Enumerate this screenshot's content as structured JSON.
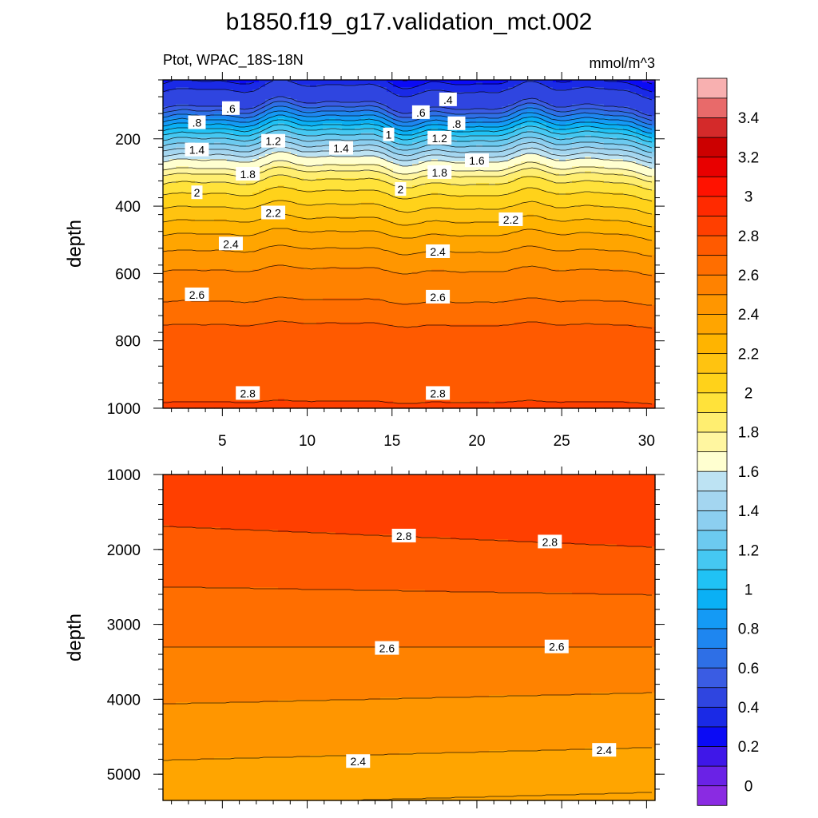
{
  "title": "b1850.f19_g17.validation_mct.002",
  "subtitle_left": "Ptot, WPAC_18S-18N",
  "subtitle_right": "mmol/m^3",
  "chart_data": [
    {
      "type": "heatmap",
      "panel": "upper",
      "ylabel": "depth",
      "xlim": [
        1.5,
        30.5
      ],
      "ylim": [
        1000,
        0
      ],
      "xticks": [
        "5",
        "10",
        "15",
        "20",
        "25",
        "30"
      ],
      "yticks": [
        "200",
        "400",
        "600",
        "800",
        "1000"
      ],
      "grid": false,
      "contour_labels": [
        {
          "text": ".6",
          "x": 5.5,
          "y": 110
        },
        {
          "text": ".4",
          "x": 18.3,
          "y": 84
        },
        {
          "text": ".6",
          "x": 16.7,
          "y": 122
        },
        {
          "text": ".8",
          "x": 3.5,
          "y": 152
        },
        {
          "text": ".8",
          "x": 18.8,
          "y": 155
        },
        {
          "text": "1",
          "x": 14.8,
          "y": 188
        },
        {
          "text": "1.2",
          "x": 8.0,
          "y": 207
        },
        {
          "text": "1.2",
          "x": 17.8,
          "y": 198
        },
        {
          "text": "1.4",
          "x": 3.5,
          "y": 233
        },
        {
          "text": "1.4",
          "x": 12.0,
          "y": 228
        },
        {
          "text": "1.6",
          "x": 20.0,
          "y": 265
        },
        {
          "text": "1.8",
          "x": 6.5,
          "y": 305
        },
        {
          "text": "1.8",
          "x": 17.8,
          "y": 300
        },
        {
          "text": "2",
          "x": 3.5,
          "y": 360
        },
        {
          "text": "2",
          "x": 15.5,
          "y": 350
        },
        {
          "text": "2.2",
          "x": 8.0,
          "y": 420
        },
        {
          "text": "2.2",
          "x": 22.0,
          "y": 440
        },
        {
          "text": "2.4",
          "x": 5.5,
          "y": 512
        },
        {
          "text": "2.4",
          "x": 17.7,
          "y": 535
        },
        {
          "text": "2.6",
          "x": 3.5,
          "y": 663
        },
        {
          "text": "2.6",
          "x": 17.7,
          "y": 670
        },
        {
          "text": "2.8",
          "x": 6.5,
          "y": 956
        },
        {
          "text": "2.8",
          "x": 17.7,
          "y": 956
        }
      ]
    },
    {
      "type": "heatmap",
      "panel": "lower",
      "ylabel": "depth",
      "xlim": [
        1.5,
        30.5
      ],
      "ylim": [
        1000,
        5350
      ],
      "yticks": [
        "1000",
        "2000",
        "3000",
        "4000",
        "5000"
      ],
      "grid": false,
      "contour_labels": [
        {
          "text": "2.8",
          "x": 15.7,
          "y": 1820
        },
        {
          "text": "2.8",
          "x": 24.3,
          "y": 1900
        },
        {
          "text": "2.6",
          "x": 14.7,
          "y": 3320
        },
        {
          "text": "2.6",
          "x": 24.7,
          "y": 3300
        },
        {
          "text": "2.4",
          "x": 13.0,
          "y": 4830
        },
        {
          "text": "2.4",
          "x": 27.5,
          "y": 4680
        }
      ]
    }
  ],
  "colorbar": {
    "levels": [
      -0.1,
      0,
      0.1,
      0.2,
      0.3,
      0.4,
      0.5,
      0.6,
      0.7,
      0.8,
      0.9,
      1.0,
      1.1,
      1.2,
      1.3,
      1.4,
      1.5,
      1.6,
      1.7,
      1.8,
      1.9,
      2.0,
      2.1,
      2.2,
      2.3,
      2.4,
      2.5,
      2.6,
      2.7,
      2.8,
      2.9,
      3.0,
      3.1,
      3.2,
      3.3,
      3.4,
      3.5,
      3.6
    ],
    "colors": [
      "#8a2be2",
      "#6a22e6",
      "#3f17e8",
      "#0b0bf5",
      "#1a2ae6",
      "#2f45e0",
      "#3a5ce3",
      "#2e6fe6",
      "#1e86f0",
      "#149af5",
      "#0ab0f5",
      "#20c2f5",
      "#45c8f2",
      "#6ccaf0",
      "#8ccff0",
      "#a4d6f0",
      "#bde3f3",
      "#ffffd0",
      "#fff6a0",
      "#ffee70",
      "#ffe23a",
      "#ffd21a",
      "#ffc310",
      "#ffb400",
      "#ffa500",
      "#ff9600",
      "#ff8200",
      "#ff6e00",
      "#ff5a00",
      "#ff3f00",
      "#ff2a00",
      "#ff1200",
      "#e80000",
      "#cc0000",
      "#d42a2a",
      "#e86a6a",
      "#f8b0b0"
    ],
    "labels": [
      "0",
      "0.2",
      "0.4",
      "0.6",
      "0.8",
      "1",
      "1.2",
      "1.4",
      "1.6",
      "1.8",
      "2",
      "2.2",
      "2.4",
      "2.6",
      "2.8",
      "3",
      "3.2",
      "3.4"
    ]
  }
}
